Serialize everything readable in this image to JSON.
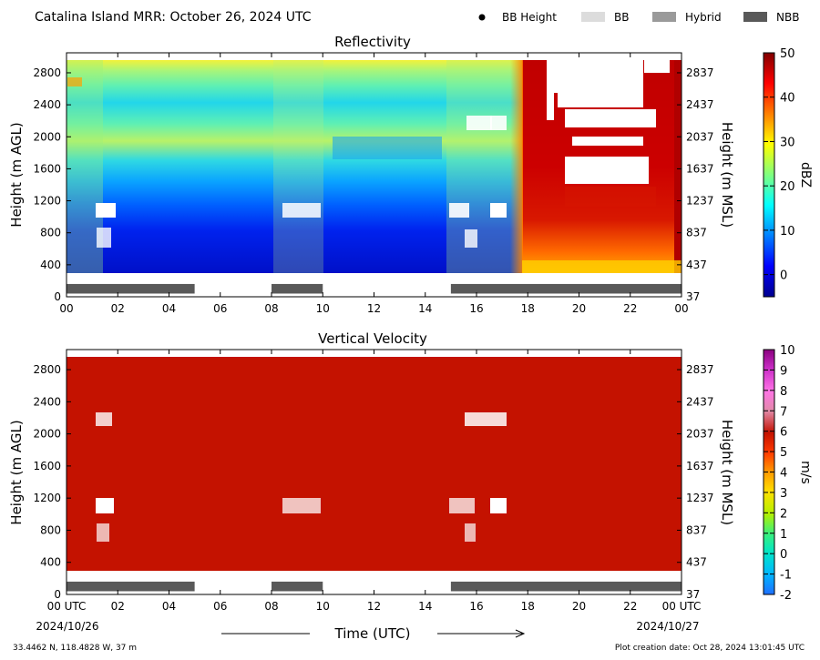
{
  "figure": {
    "title": "Catalina Island MRR:  October 26, 2024 UTC",
    "legend": [
      {
        "label": "BB Height",
        "marker": "dot",
        "color": "#000000"
      },
      {
        "label": "BB",
        "marker": "bar",
        "color": "#dcdcdc"
      },
      {
        "label": "Hybrid",
        "marker": "bar",
        "color": "#9a9a9a"
      },
      {
        "label": "NBB",
        "marker": "bar",
        "color": "#595959"
      }
    ],
    "x_axis_label": "Time (UTC)",
    "x_start_label": "00 UTC",
    "x_end_label": "00 UTC",
    "date_start": "2024/10/26",
    "date_end": "2024/10/27",
    "location": "33.4462 N, 118.4828 W, 37 m",
    "creation_date": "Plot creation date: Oct 28, 2024 13:01:45 UTC"
  },
  "chart_data": [
    {
      "type": "heatmap",
      "title": "Reflectivity",
      "ylabel": "Height (m AGL)",
      "ylabel_right": "Height (m MSL)",
      "x_ticks": [
        "00",
        "02",
        "04",
        "06",
        "08",
        "10",
        "12",
        "14",
        "16",
        "18",
        "20",
        "22",
        "00"
      ],
      "x_range_hours": [
        0,
        24
      ],
      "y_range_m": [
        0,
        3050
      ],
      "y_ticks": [
        0,
        400,
        800,
        1200,
        1600,
        2000,
        2400,
        2800
      ],
      "y_ticks_right": [
        "37",
        "437",
        "837",
        "1237",
        "1637",
        "2037",
        "2437",
        "2837"
      ],
      "colorbar": {
        "label": "dBZ",
        "ticks": [
          0,
          10,
          20,
          30,
          40,
          50
        ],
        "range": [
          -5,
          50
        ],
        "colormap": "jet"
      },
      "nbb_periods_hours": [
        [
          0,
          5
        ],
        [
          8,
          10
        ],
        [
          15,
          24
        ]
      ],
      "precipitation_hours": [
        18,
        23
      ]
    },
    {
      "type": "heatmap",
      "title": "Vertical Velocity",
      "ylabel": "Height (m AGL)",
      "ylabel_right": "Height (m MSL)",
      "x_ticks": [
        "00 UTC",
        "02",
        "04",
        "06",
        "08",
        "10",
        "12",
        "14",
        "16",
        "18",
        "20",
        "22",
        "00 UTC"
      ],
      "x_range_hours": [
        0,
        24
      ],
      "y_range_m": [
        0,
        3050
      ],
      "y_ticks": [
        0,
        400,
        800,
        1200,
        1600,
        2000,
        2400,
        2800
      ],
      "y_ticks_right": [
        "37",
        "437",
        "837",
        "1237",
        "1637",
        "2037",
        "2437",
        "2837"
      ],
      "colorbar": {
        "label": "m/s",
        "ticks": [
          -2,
          -1,
          0,
          1,
          2,
          3,
          4,
          5,
          6,
          7,
          8,
          9,
          10
        ],
        "range": [
          -2,
          10
        ],
        "colormap": "custom"
      },
      "nbb_periods_hours": [
        [
          0,
          5
        ],
        [
          8,
          10
        ],
        [
          15,
          24
        ]
      ],
      "fill_value_ms": 6
    }
  ]
}
